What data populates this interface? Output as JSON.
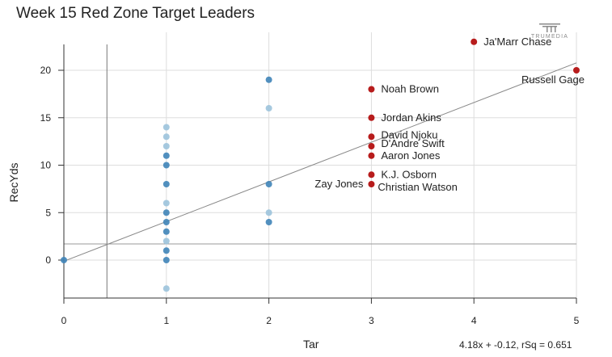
{
  "page": {
    "title": "Week 15 Red Zone Target Leaders",
    "brand_text": "TRUMEDIA",
    "equation": "4.18x + -0.12, rSq = 0.651"
  },
  "colors": {
    "blue": "#3f84b8",
    "blue_light": "#9cc3dc",
    "red": "#b71c1c",
    "grid": "#dddddd",
    "axis": "#333333",
    "trend": "#888888",
    "brand": "#8a8a8a"
  },
  "chart_data": {
    "type": "scatter",
    "title": "Week 15 Red Zone Target Leaders",
    "xlabel": "Tar",
    "ylabel": "RecYds",
    "xlim": [
      0,
      5
    ],
    "ylim": [
      -4,
      24
    ],
    "x_ticks": [
      0,
      1,
      2,
      3,
      4,
      5
    ],
    "y_ticks": [
      0,
      5,
      10,
      15,
      20
    ],
    "grid": true,
    "trendline": {
      "slope": 4.18,
      "intercept": -0.12,
      "rsq": 0.651
    },
    "reference_lines": {
      "x": 0.42,
      "y": 1.7
    },
    "unlabeled_points": [
      {
        "x": 0,
        "y": 0
      },
      {
        "x": 1,
        "y": 14
      },
      {
        "x": 1,
        "y": 13
      },
      {
        "x": 1,
        "y": 12
      },
      {
        "x": 1,
        "y": 11
      },
      {
        "x": 1,
        "y": 10
      },
      {
        "x": 1,
        "y": 8
      },
      {
        "x": 1,
        "y": 6
      },
      {
        "x": 1,
        "y": 5
      },
      {
        "x": 1,
        "y": 4
      },
      {
        "x": 1,
        "y": 3
      },
      {
        "x": 1,
        "y": 2
      },
      {
        "x": 1,
        "y": 1
      },
      {
        "x": 1,
        "y": 0
      },
      {
        "x": 1,
        "y": -3
      },
      {
        "x": 2,
        "y": 19
      },
      {
        "x": 2,
        "y": 16
      },
      {
        "x": 2,
        "y": 8
      },
      {
        "x": 2,
        "y": 5
      },
      {
        "x": 2,
        "y": 4
      }
    ],
    "labeled_points": [
      {
        "name": "Ja'Marr Chase",
        "x": 4,
        "y": 23,
        "label_pos": "right"
      },
      {
        "name": "Russell Gage",
        "x": 5,
        "y": 20,
        "label_pos": "below-left"
      },
      {
        "name": "Noah Brown",
        "x": 3,
        "y": 18,
        "label_pos": "right"
      },
      {
        "name": "Jordan Akins",
        "x": 3,
        "y": 15,
        "label_pos": "right"
      },
      {
        "name": "David Njoku",
        "x": 3,
        "y": 13,
        "label_pos": "right"
      },
      {
        "name": "D'Andre Swift",
        "x": 3,
        "y": 12,
        "label_pos": "right"
      },
      {
        "name": "Aaron Jones",
        "x": 3,
        "y": 11,
        "label_pos": "right"
      },
      {
        "name": "K.J. Osborn",
        "x": 3,
        "y": 9,
        "label_pos": "right"
      },
      {
        "name": "Christian Watson",
        "x": 3,
        "y": 8,
        "label_pos": "right-low"
      },
      {
        "name": "Zay Jones",
        "x": 3,
        "y": 8,
        "label_pos": "left"
      }
    ]
  }
}
